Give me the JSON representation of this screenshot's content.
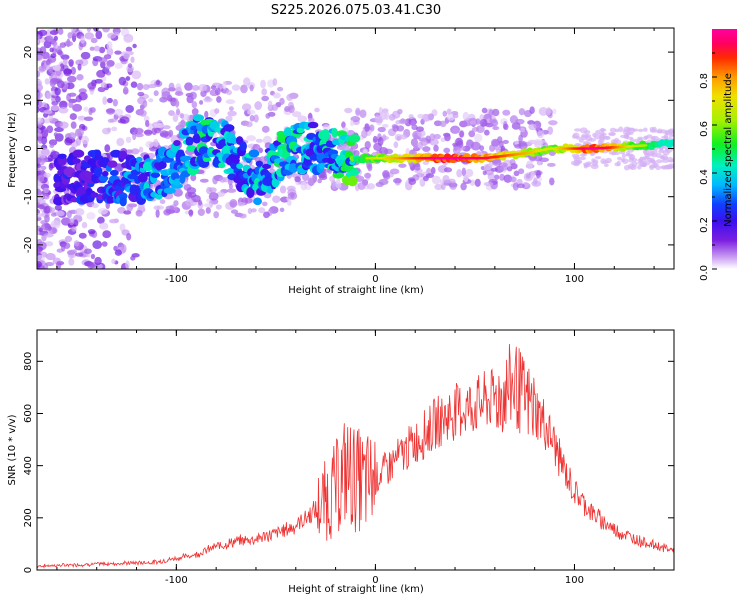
{
  "title": "S225.2026.075.03.41.C30",
  "chart_data": [
    {
      "type": "heatmap",
      "xlabel": "Height of straight line (km)",
      "ylabel": "Frequency (Hz)",
      "xlim": [
        -170,
        150
      ],
      "ylim": [
        -25,
        25
      ],
      "xticks": [
        -100,
        0,
        100
      ],
      "yticks": [
        -20,
        -10,
        0,
        10,
        20
      ],
      "colorbar": {
        "label": "Normalized spectral amplitude",
        "range": [
          0,
          1
        ],
        "ticks": [
          0.0,
          0.2,
          0.4,
          0.6,
          0.8
        ],
        "tick_labels": [
          "0.0",
          "0.2",
          "0.4",
          "0.6",
          "0.8"
        ]
      },
      "track": [
        {
          "x": -150,
          "y": -6,
          "amp": 0.2
        },
        {
          "x": -130,
          "y": -6,
          "amp": 0.25
        },
        {
          "x": -112,
          "y": -7,
          "amp": 0.35
        },
        {
          "x": -100,
          "y": -3,
          "amp": 0.3
        },
        {
          "x": -88,
          "y": 2,
          "amp": 0.4
        },
        {
          "x": -75,
          "y": 0,
          "amp": 0.35
        },
        {
          "x": -58,
          "y": -7,
          "amp": 0.35
        },
        {
          "x": -45,
          "y": 0,
          "amp": 0.4
        },
        {
          "x": -30,
          "y": 0,
          "amp": 0.35
        },
        {
          "x": -15,
          "y": -2,
          "amp": 0.45
        },
        {
          "x": 0,
          "y": -2,
          "amp": 0.6
        },
        {
          "x": 15,
          "y": -2,
          "amp": 0.75
        },
        {
          "x": 35,
          "y": -2,
          "amp": 0.95
        },
        {
          "x": 55,
          "y": -2,
          "amp": 0.85
        },
        {
          "x": 75,
          "y": -1,
          "amp": 0.7
        },
        {
          "x": 88,
          "y": 0,
          "amp": 0.6
        },
        {
          "x": 110,
          "y": 0,
          "amp": 0.95
        },
        {
          "x": 130,
          "y": 0.5,
          "amp": 0.6
        },
        {
          "x": 148,
          "y": 1,
          "amp": 0.45
        }
      ]
    },
    {
      "type": "line",
      "xlabel": "Height of straight line (km)",
      "ylabel": "SNR (10 * v/v)",
      "xlim": [
        -170,
        150
      ],
      "ylim": [
        0,
        920
      ],
      "xticks": [
        -100,
        0,
        100
      ],
      "yticks": [
        0,
        200,
        400,
        600,
        800
      ],
      "color": "#ee3333",
      "x": [
        -170,
        -150,
        -130,
        -110,
        -100,
        -90,
        -80,
        -70,
        -60,
        -50,
        -40,
        -30,
        -20,
        -15,
        -10,
        -5,
        0,
        10,
        20,
        30,
        40,
        50,
        60,
        65,
        70,
        75,
        80,
        85,
        90,
        95,
        100,
        110,
        120,
        130,
        140,
        150
      ],
      "y": [
        15,
        20,
        25,
        30,
        45,
        60,
        90,
        110,
        120,
        140,
        170,
        230,
        310,
        380,
        350,
        330,
        350,
        420,
        490,
        560,
        610,
        630,
        660,
        680,
        720,
        650,
        620,
        560,
        480,
        380,
        300,
        210,
        155,
        120,
        95,
        75
      ]
    }
  ]
}
